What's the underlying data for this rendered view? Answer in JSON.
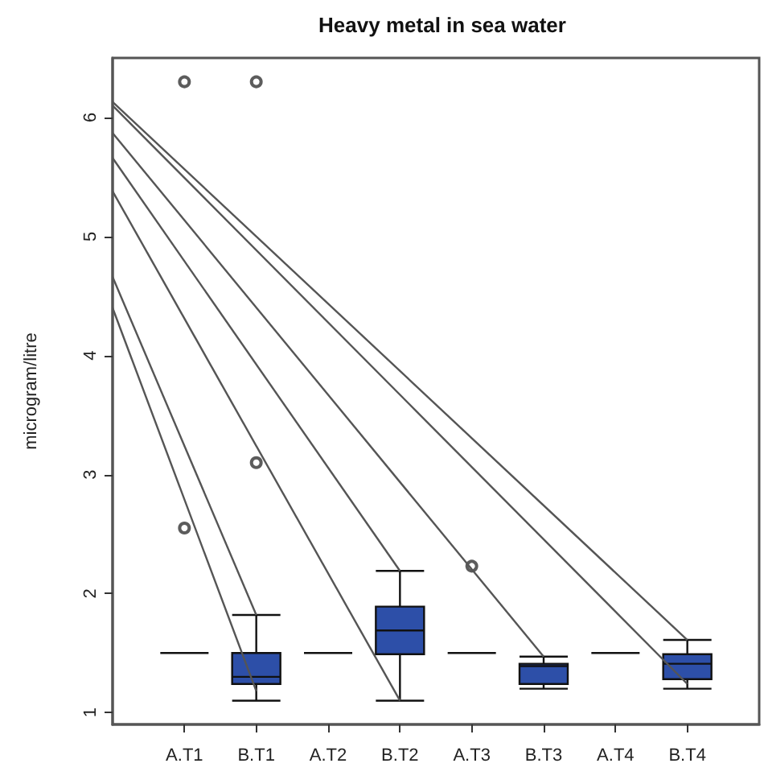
{
  "chart_data": {
    "type": "box",
    "title": "Heavy metal in sea water",
    "ylabel": "microgram/litre",
    "categories": [
      null,
      "A.T1",
      "B.T1",
      "A.T2",
      "B.T2",
      "A.T3",
      "B.T3",
      "A.T4",
      "B.T4",
      null
    ],
    "colors": [
      null,
      "#111111",
      "#2d4fa8",
      "#111111",
      "#2d4fa8",
      "#111111",
      "#2d4fa8",
      "#111111",
      "#2d4fa8",
      null
    ],
    "ylim": [
      0.9,
      6.5
    ],
    "yticks": [
      1,
      2,
      3,
      4,
      5,
      6
    ],
    "grid": false,
    "boxes": [
      null,
      {
        "low": 1.5,
        "q1": 1.5,
        "median": 1.5,
        "q3": 1.5,
        "high": 1.5,
        "outliers": [
          2.55,
          6.3
        ]
      },
      {
        "low": 1.1,
        "q1": 1.24,
        "median": 1.3,
        "q3": 1.5,
        "high": 1.82,
        "outliers": [
          3.1,
          6.3
        ]
      },
      {
        "low": 1.5,
        "q1": 1.5,
        "median": 1.5,
        "q3": 1.5,
        "high": 1.5
      },
      {
        "low": 1.1,
        "q1": 1.49,
        "median": 1.69,
        "q3": 1.89,
        "high": 2.19
      },
      {
        "low": 1.5,
        "q1": 1.5,
        "median": 1.5,
        "q3": 1.5,
        "high": 1.5,
        "outliers": [
          2.23
        ]
      },
      {
        "low": 1.2,
        "q1": 1.24,
        "median": 1.39,
        "q3": 1.41,
        "high": 1.47
      },
      {
        "low": 1.5,
        "q1": 1.5,
        "median": 1.5,
        "q3": 1.5,
        "high": 1.5
      },
      {
        "low": 1.2,
        "q1": 1.28,
        "median": 1.41,
        "q3": 1.49,
        "high": 1.61
      },
      null
    ],
    "series": [
      {
        "type": "line",
        "color": "#555555",
        "marker": "none",
        "values": [
          6.13,
          null,
          null,
          null,
          null,
          null,
          null,
          null,
          1.61,
          null
        ]
      },
      {
        "type": "line",
        "color": "#555555",
        "marker": "none",
        "values": [
          6.1,
          null,
          null,
          null,
          null,
          null,
          null,
          null,
          1.24,
          null
        ]
      },
      {
        "type": "line",
        "color": "#555555",
        "marker": "none",
        "values": [
          5.87,
          null,
          null,
          null,
          null,
          null,
          1.47,
          null,
          null,
          null
        ]
      },
      {
        "type": "line",
        "color": "#555555",
        "marker": "none",
        "values": [
          5.66,
          null,
          null,
          null,
          2.19,
          null,
          null,
          null,
          null,
          null
        ]
      },
      {
        "type": "line",
        "color": "#555555",
        "marker": "none",
        "values": [
          5.38,
          null,
          null,
          null,
          1.1,
          null,
          null,
          null,
          null,
          null
        ]
      },
      {
        "type": "line",
        "color": "#555555",
        "marker": "none",
        "values": [
          4.66,
          null,
          1.82,
          null,
          null,
          null,
          null,
          null,
          null,
          null
        ]
      },
      {
        "type": "line",
        "color": "#555555",
        "marker": "none",
        "values": [
          4.4,
          null,
          1.18,
          null,
          null,
          null,
          null,
          null,
          null,
          null
        ]
      }
    ]
  }
}
